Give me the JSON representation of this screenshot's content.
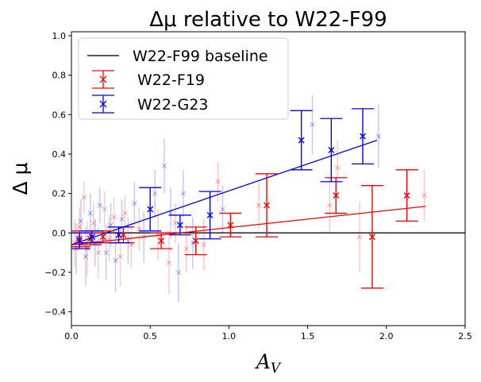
{
  "chart_data": {
    "type": "scatter",
    "title": "Δμ relative to W22-F99",
    "xlabel": "A_V",
    "xlabel_main": "A",
    "xlabel_sub": "V",
    "ylabel": "Δ μ",
    "xlim": [
      0.0,
      2.5
    ],
    "ylim": [
      -0.47,
      1.02
    ],
    "xticks": [
      "0.0",
      "0.5",
      "1.0",
      "1.5",
      "2.0",
      "2.5"
    ],
    "yticks": [
      "−0.4",
      "−0.2",
      "0.0",
      "0.2",
      "0.4",
      "0.6",
      "0.8",
      "1.0"
    ],
    "grid": false,
    "legend_position": "top-left",
    "baseline": {
      "name": "W22-F99 baseline",
      "value": 0.0,
      "color": "#222222"
    },
    "series": [
      {
        "name": "W22-F19",
        "color": "#ff0000",
        "fit": {
          "x0": 0.0,
          "y0": -0.06,
          "x1": 2.25,
          "y1": 0.135
        },
        "binned": [
          {
            "x": 0.05,
            "y": -0.03,
            "err": 0.04
          },
          {
            "x": 0.12,
            "y": -0.03,
            "err": 0.03
          },
          {
            "x": 0.2,
            "y": -0.02,
            "err": 0.03
          },
          {
            "x": 0.33,
            "y": -0.01,
            "err": 0.04
          },
          {
            "x": 0.57,
            "y": -0.04,
            "err": 0.04
          },
          {
            "x": 0.79,
            "y": -0.04,
            "err": 0.07
          },
          {
            "x": 1.01,
            "y": 0.04,
            "err": 0.06
          },
          {
            "x": 1.24,
            "y": 0.14,
            "err": 0.16
          },
          {
            "x": 1.68,
            "y": 0.19,
            "err": 0.09
          },
          {
            "x": 1.91,
            "y": -0.02,
            "err": 0.26
          },
          {
            "x": 2.13,
            "y": 0.19,
            "err": 0.13
          }
        ],
        "points": [
          {
            "x": 0.02,
            "y": -0.05,
            "err": 0.12
          },
          {
            "x": 0.05,
            "y": 0.03,
            "err": 0.1
          },
          {
            "x": 0.08,
            "y": 0.18,
            "err": 0.08
          },
          {
            "x": 0.1,
            "y": -0.08,
            "err": 0.14
          },
          {
            "x": 0.14,
            "y": 0.05,
            "err": 0.11
          },
          {
            "x": 0.17,
            "y": -0.1,
            "err": 0.13
          },
          {
            "x": 0.21,
            "y": 0.12,
            "err": 0.09
          },
          {
            "x": 0.24,
            "y": -0.03,
            "err": 0.12
          },
          {
            "x": 0.27,
            "y": 0.08,
            "err": 0.1
          },
          {
            "x": 0.31,
            "y": -0.12,
            "err": 0.15
          },
          {
            "x": 0.34,
            "y": 0.1,
            "err": 0.09
          },
          {
            "x": 0.38,
            "y": -0.06,
            "err": 0.12
          },
          {
            "x": 0.43,
            "y": 0.02,
            "err": 0.11
          },
          {
            "x": 0.55,
            "y": -0.01,
            "err": 0.13
          },
          {
            "x": 0.62,
            "y": -0.15,
            "err": 0.16
          },
          {
            "x": 0.66,
            "y": 0.05,
            "err": 0.1
          },
          {
            "x": 0.73,
            "y": -0.08,
            "err": 0.12
          },
          {
            "x": 0.84,
            "y": -0.06,
            "err": 0.13
          },
          {
            "x": 0.93,
            "y": 0.26,
            "err": 0.1
          },
          {
            "x": 1.19,
            "y": 0.14,
            "err": 0.12
          },
          {
            "x": 1.64,
            "y": 0.14,
            "err": 0.14
          },
          {
            "x": 1.69,
            "y": 0.33,
            "err": 0.14
          },
          {
            "x": 1.83,
            "y": -0.02,
            "err": 0.18
          },
          {
            "x": 2.24,
            "y": 0.19,
            "err": 0.13
          }
        ]
      },
      {
        "name": "W22-G23",
        "color": "#0000ff",
        "fit": {
          "x0": 0.0,
          "y0": -0.06,
          "x1": 1.94,
          "y1": 0.47
        },
        "binned": [
          {
            "x": 0.05,
            "y": -0.04,
            "err": 0.04
          },
          {
            "x": 0.13,
            "y": -0.02,
            "err": 0.03
          },
          {
            "x": 0.3,
            "y": -0.01,
            "err": 0.04
          },
          {
            "x": 0.5,
            "y": 0.12,
            "err": 0.11
          },
          {
            "x": 0.69,
            "y": 0.04,
            "err": 0.05
          },
          {
            "x": 0.88,
            "y": 0.09,
            "err": 0.12
          },
          {
            "x": 1.46,
            "y": 0.47,
            "err": 0.15
          },
          {
            "x": 1.65,
            "y": 0.42,
            "err": 0.16
          },
          {
            "x": 1.85,
            "y": 0.49,
            "err": 0.14
          }
        ],
        "points": [
          {
            "x": 0.03,
            "y": -0.08,
            "err": 0.13
          },
          {
            "x": 0.06,
            "y": 0.06,
            "err": 0.11
          },
          {
            "x": 0.09,
            "y": -0.12,
            "err": 0.15
          },
          {
            "x": 0.12,
            "y": 0.1,
            "err": 0.1
          },
          {
            "x": 0.15,
            "y": -0.05,
            "err": 0.12
          },
          {
            "x": 0.18,
            "y": 0.14,
            "err": 0.09
          },
          {
            "x": 0.22,
            "y": -0.1,
            "err": 0.14
          },
          {
            "x": 0.25,
            "y": 0.04,
            "err": 0.11
          },
          {
            "x": 0.28,
            "y": -0.14,
            "err": 0.16
          },
          {
            "x": 0.32,
            "y": 0.07,
            "err": 0.1
          },
          {
            "x": 0.36,
            "y": -0.04,
            "err": 0.12
          },
          {
            "x": 0.4,
            "y": 0.15,
            "err": 0.11
          },
          {
            "x": 0.46,
            "y": -0.02,
            "err": 0.13
          },
          {
            "x": 0.53,
            "y": 0.2,
            "err": 0.12
          },
          {
            "x": 0.59,
            "y": 0.34,
            "err": 0.14
          },
          {
            "x": 0.63,
            "y": 0.1,
            "err": 0.13
          },
          {
            "x": 0.68,
            "y": -0.2,
            "err": 0.15
          },
          {
            "x": 0.71,
            "y": 0.2,
            "err": 0.12
          },
          {
            "x": 0.77,
            "y": -0.05,
            "err": 0.13
          },
          {
            "x": 0.96,
            "y": 0.12,
            "err": 0.12
          },
          {
            "x": 1.53,
            "y": 0.55,
            "err": 0.15
          },
          {
            "x": 1.95,
            "y": 0.49,
            "err": 0.16
          }
        ]
      }
    ]
  }
}
